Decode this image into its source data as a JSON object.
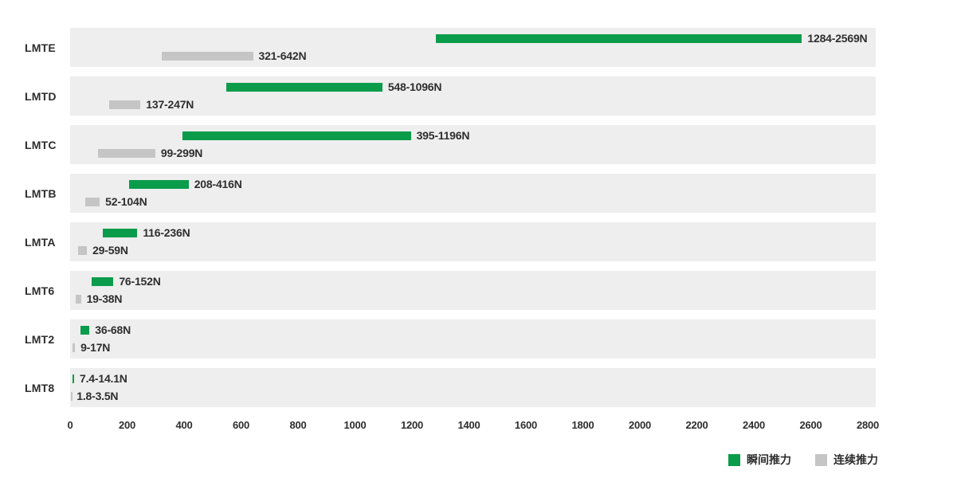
{
  "chart_data": {
    "type": "bar",
    "orientation": "horizontal",
    "categories": [
      "LMTE",
      "LMTD",
      "LMTC",
      "LMTB",
      "LMTA",
      "LMT6",
      "LMT2",
      "LMT8"
    ],
    "series": [
      {
        "name": "瞬间推力",
        "color": "#0a9c4a",
        "ranges": [
          [
            1284,
            2569
          ],
          [
            548,
            1096
          ],
          [
            395,
            1196
          ],
          [
            208,
            416
          ],
          [
            116,
            236
          ],
          [
            76,
            152
          ],
          [
            36,
            68
          ],
          [
            7.4,
            14.1
          ]
        ],
        "labels": [
          "1284-2569N",
          "548-1096N",
          "395-1196N",
          "208-416N",
          "116-236N",
          "76-152N",
          "36-68N",
          "7.4-14.1N"
        ]
      },
      {
        "name": "连续推力",
        "color": "#c5c5c5",
        "ranges": [
          [
            321,
            642
          ],
          [
            137,
            247
          ],
          [
            99,
            299
          ],
          [
            52,
            104
          ],
          [
            29,
            59
          ],
          [
            19,
            38
          ],
          [
            9,
            17
          ],
          [
            1.8,
            3.5
          ]
        ],
        "labels": [
          "321-642N",
          "137-247N",
          "99-299N",
          "52-104N",
          "29-59N",
          "19-38N",
          "9-17N",
          "1.8-3.5N"
        ]
      }
    ],
    "unit": "N",
    "xlim": [
      0,
      2800
    ],
    "x_ticks": [
      0,
      200,
      400,
      600,
      800,
      1000,
      1200,
      1400,
      1600,
      1800,
      2000,
      2200,
      2400,
      2600,
      2800
    ],
    "legend_position": "bottom-right",
    "grid": false,
    "row_background": "#eeeeee",
    "text_color": "#2e2e2e"
  }
}
